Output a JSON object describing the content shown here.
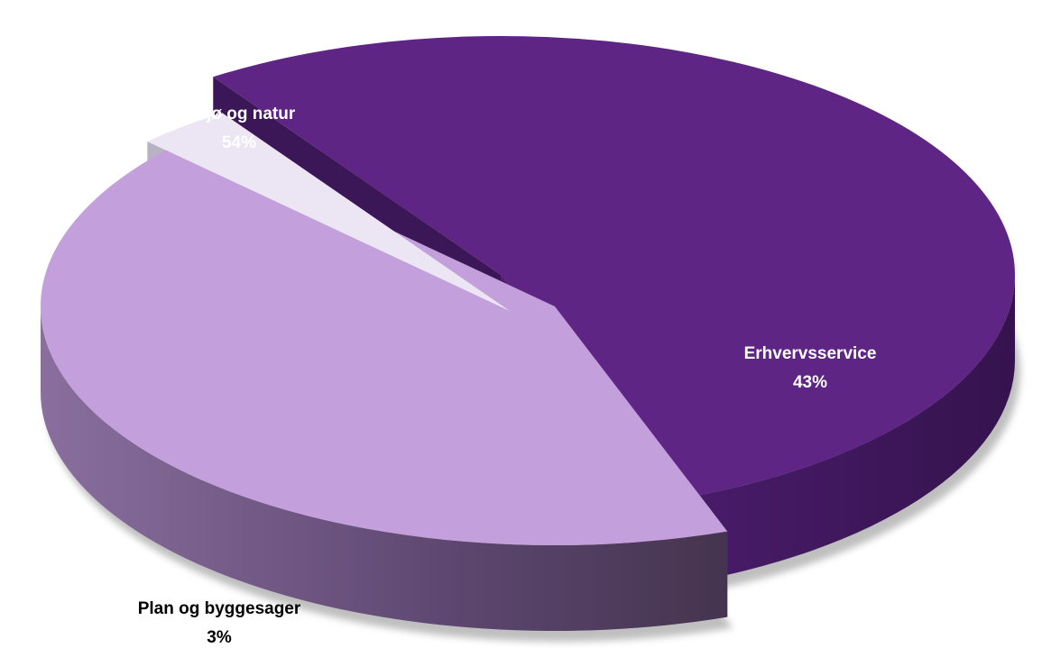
{
  "chart_data": {
    "type": "pie",
    "style": "3d-exploded",
    "slices": [
      {
        "name": "Miljø og natur",
        "value": 54,
        "label": "54%",
        "color": "#5e2585",
        "side_color": "#3c1757",
        "label_color": "#ffffff"
      },
      {
        "name": "Erhvervsservice",
        "value": 43,
        "label": "43%",
        "color": "#c3a0dc",
        "side_color": "#5a4469",
        "label_color": "#ffffff"
      },
      {
        "name": "Plan og byggesager",
        "value": 3,
        "label": "3%",
        "color": "#ece6f4",
        "side_color": "#b9b1c4",
        "label_color": "#000000"
      }
    ]
  }
}
